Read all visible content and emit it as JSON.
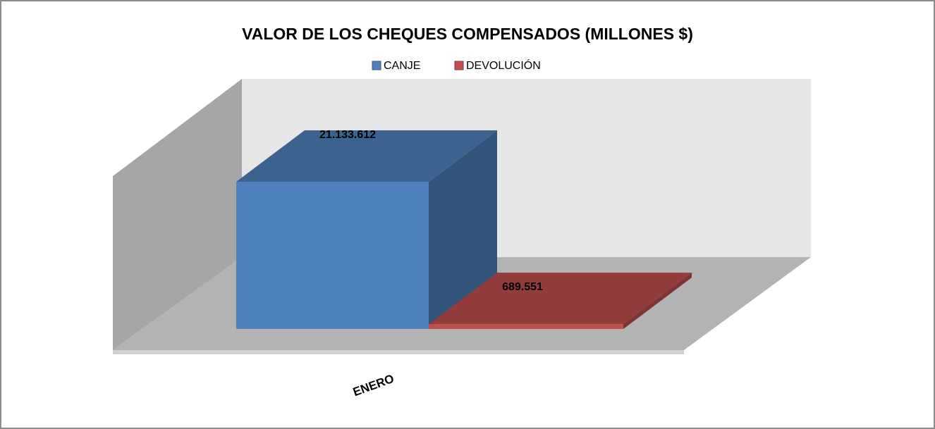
{
  "chart_data": {
    "type": "bar3d",
    "title": "VALOR DE LOS CHEQUES COMPENSADOS (MILLONES $)",
    "categories": [
      "ENERO"
    ],
    "series": [
      {
        "name": "CANJE",
        "color": "#4f81bd",
        "values": [
          21133612
        ],
        "value_labels": [
          "21.133.612"
        ]
      },
      {
        "name": "DEVOLUCIÓN",
        "color": "#c0504d",
        "values": [
          689551
        ],
        "value_labels": [
          "689.551"
        ]
      }
    ]
  }
}
